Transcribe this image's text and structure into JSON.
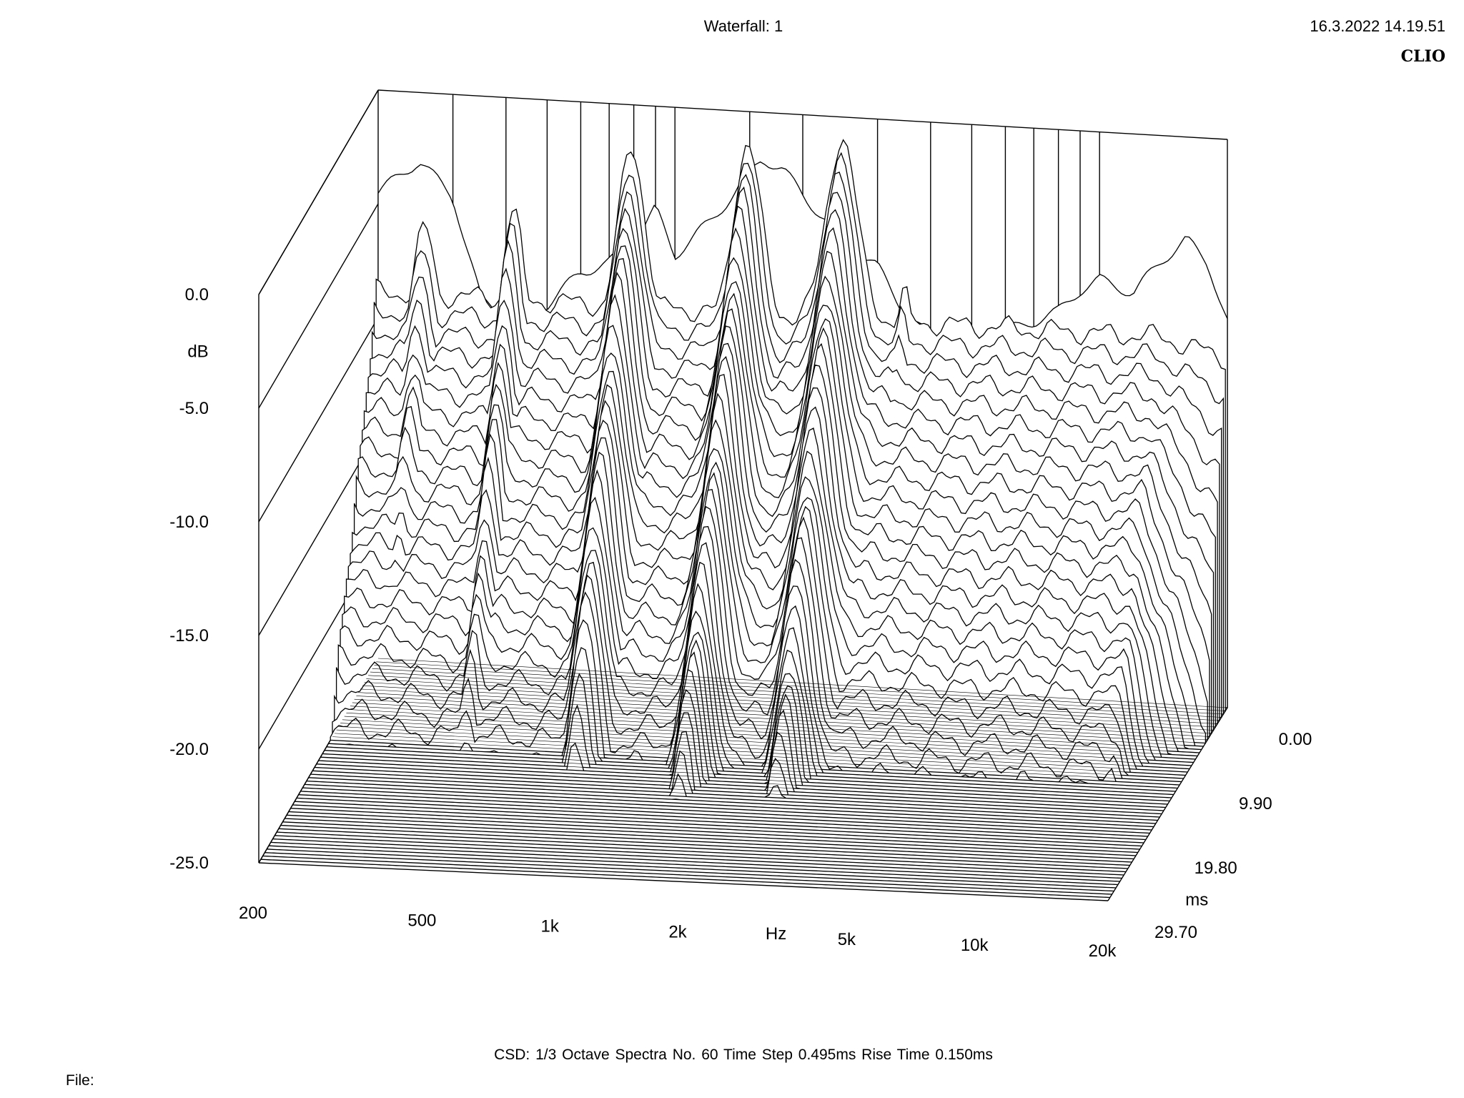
{
  "header": {
    "title": "Waterfall: 1",
    "timestamp": "16.3.2022 14.19.51",
    "brand": "CLIO"
  },
  "footer": {
    "settings": "CSD:   1/3 Octave   Spectra No. 60   Time Step 0.495ms   Rise Time 0.150ms",
    "file_label": "File:"
  },
  "chart_data": {
    "type": "waterfall",
    "title": "Waterfall: 1",
    "x_axis": {
      "label": "Hz",
      "scale": "log",
      "range": [
        200,
        20000
      ],
      "ticks": [
        {
          "value": 200,
          "label": "200"
        },
        {
          "value": 500,
          "label": "500"
        },
        {
          "value": 1000,
          "label": "1k"
        },
        {
          "value": 2000,
          "label": "2k"
        },
        {
          "value": 5000,
          "label": "5k"
        },
        {
          "value": 10000,
          "label": "10k"
        },
        {
          "value": 20000,
          "label": "20k"
        }
      ]
    },
    "y_axis": {
      "label": "dB",
      "range": [
        -25,
        0
      ],
      "ticks": [
        {
          "value": 0,
          "label": "0.0"
        },
        {
          "value": -5,
          "label": "-5.0"
        },
        {
          "value": -10,
          "label": "-10.0"
        },
        {
          "value": -15,
          "label": "-15.0"
        },
        {
          "value": -20,
          "label": "-20.0"
        },
        {
          "value": -25,
          "label": "-25.0"
        }
      ]
    },
    "z_axis": {
      "label": "ms",
      "range": [
        0,
        29.7
      ],
      "ticks": [
        {
          "value": 0,
          "label": "0.00"
        },
        {
          "value": 9.9,
          "label": "9.90"
        },
        {
          "value": 19.8,
          "label": "19.80"
        },
        {
          "value": 29.7,
          "label": "29.70"
        }
      ]
    },
    "spectra_count": 60,
    "time_step_ms": 0.495,
    "rise_time_ms": 0.15,
    "smoothing": "1/3 Octave",
    "first_spectrum_approx": {
      "freqs_hz": [
        200,
        250,
        300,
        350,
        400,
        500,
        600,
        700,
        800,
        900,
        1000,
        1200,
        1400,
        1600,
        1800,
        2000,
        2500,
        3000,
        3500,
        4000,
        5000,
        6000,
        7000,
        8000,
        9000,
        10000,
        12000,
        14000,
        16000,
        18000,
        20000
      ],
      "db": [
        -4.5,
        -3.0,
        -4.5,
        -9.0,
        -9.5,
        -9.0,
        -7.5,
        -7.0,
        -6.0,
        -4.5,
        -6.5,
        -5.0,
        -3.5,
        -2.0,
        -2.5,
        -3.5,
        -5.5,
        -6.5,
        -8.5,
        -9.5,
        -10.0,
        -9.0,
        -8.5,
        -8.0,
        -7.0,
        -6.5,
        -7.0,
        -5.5,
        -4.5,
        -5.5,
        -8.0
      ]
    },
    "decay_peaks_approx": [
      {
        "freq_hz": 800,
        "db_at_1ms": -1.0
      },
      {
        "freq_hz": 1500,
        "db_at_1ms": -0.5
      },
      {
        "freq_hz": 2500,
        "db_at_1ms": 0.0
      },
      {
        "freq_hz": 3500,
        "db_at_1ms": -6.5
      },
      {
        "freq_hz": 5000,
        "db_at_3ms": -11.0
      },
      {
        "freq_hz": 12000,
        "db_at_8ms": -17.0
      }
    ]
  }
}
